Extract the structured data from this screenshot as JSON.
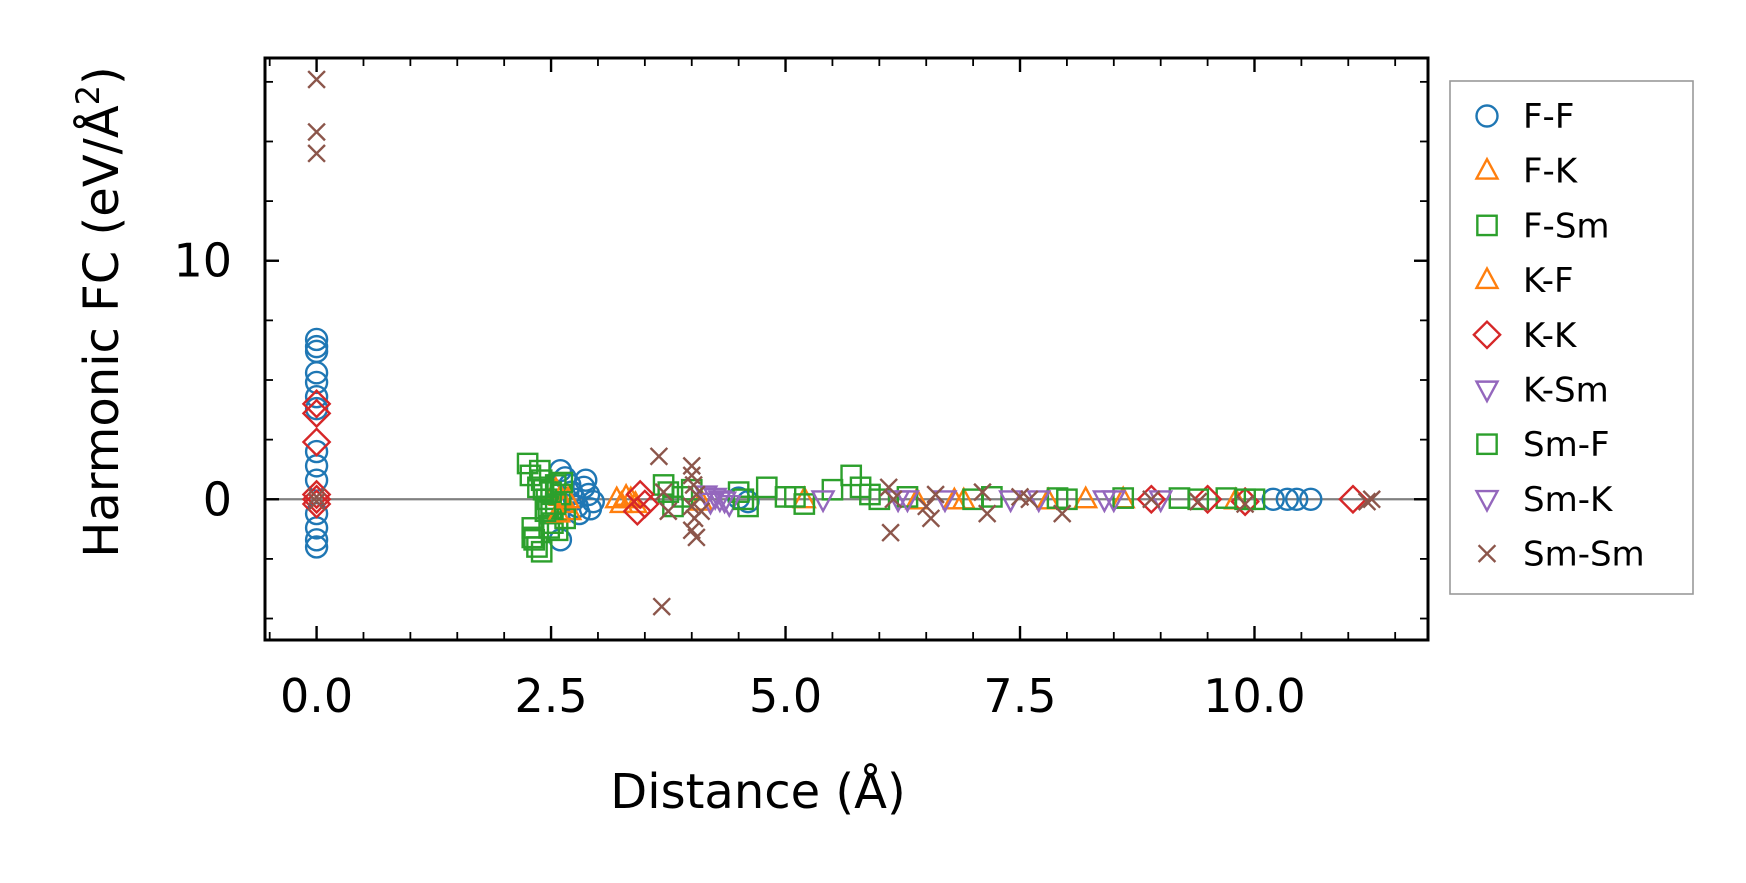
{
  "chart_data": {
    "type": "scatter",
    "xlabel": "Distance (Å)",
    "ylabel_main": "Harmonic FC (eV/Å",
    "ylabel_sup": "2",
    "ylabel_close": ")",
    "xlim": [
      -0.55,
      11.85
    ],
    "ylim": [
      -5.9,
      18.5
    ],
    "x_ticks": [
      0.0,
      2.5,
      5.0,
      7.5,
      10.0
    ],
    "x_tick_labels": [
      "0.0",
      "2.5",
      "5.0",
      "7.5",
      "10.0"
    ],
    "y_ticks": [
      0,
      10
    ],
    "y_tick_labels": [
      "0",
      "10"
    ],
    "zero_line": true,
    "grid": false,
    "legend_position": "right-outside",
    "series": [
      {
        "name": "F-F",
        "marker": "circle",
        "color": "#1f77b4",
        "points": [
          [
            0,
            6.7
          ],
          [
            0,
            6.4
          ],
          [
            0,
            6.2
          ],
          [
            0,
            5.3
          ],
          [
            0,
            4.9
          ],
          [
            0,
            4.3
          ],
          [
            0,
            3.8
          ],
          [
            0,
            2.0
          ],
          [
            0,
            1.4
          ],
          [
            0,
            0.8
          ],
          [
            0,
            -0.6
          ],
          [
            0,
            -1.2
          ],
          [
            0,
            -1.7
          ],
          [
            0,
            -2.0
          ],
          [
            2.6,
            1.2
          ],
          [
            2.65,
            0.9
          ],
          [
            2.7,
            0.6
          ],
          [
            2.72,
            0.3
          ],
          [
            2.75,
            0.0
          ],
          [
            2.78,
            -0.3
          ],
          [
            2.8,
            -0.6
          ],
          [
            2.6,
            -1.7
          ],
          [
            2.85,
            0.5
          ],
          [
            2.9,
            0.2
          ],
          [
            2.95,
            -0.1
          ],
          [
            2.87,
            0.8
          ],
          [
            2.92,
            -0.4
          ],
          [
            4.5,
            0.05
          ],
          [
            4.6,
            -0.1
          ],
          [
            10.2,
            0.0
          ],
          [
            10.35,
            0.0
          ],
          [
            10.45,
            0.0
          ],
          [
            10.6,
            0.0
          ]
        ]
      },
      {
        "name": "F-K",
        "marker": "triangle-up",
        "color": "#ff7f0e",
        "points": [
          [
            2.55,
            0.4
          ],
          [
            2.6,
            0.1
          ],
          [
            2.62,
            -0.2
          ],
          [
            2.7,
            -0.5
          ],
          [
            3.25,
            -0.2
          ],
          [
            3.3,
            0.1
          ],
          [
            3.35,
            0.0
          ],
          [
            4.1,
            -0.1
          ],
          [
            5.2,
            0.0
          ],
          [
            6.4,
            -0.05
          ],
          [
            6.9,
            -0.05
          ],
          [
            7.8,
            -0.05
          ],
          [
            8.6,
            0.0
          ],
          [
            9.8,
            -0.05
          ]
        ]
      },
      {
        "name": "F-Sm",
        "marker": "square",
        "color": "#2ca02c",
        "points": [
          [
            2.25,
            1.5
          ],
          [
            2.3,
            -1.2
          ],
          [
            2.32,
            -1.7
          ],
          [
            2.35,
            -2.0
          ],
          [
            2.38,
            1.2
          ],
          [
            2.4,
            0.8
          ],
          [
            2.42,
            0.4
          ],
          [
            2.45,
            0.0
          ],
          [
            2.47,
            -0.3
          ],
          [
            2.5,
            -0.6
          ],
          [
            2.52,
            -1.0
          ],
          [
            2.55,
            0.6
          ],
          [
            2.57,
            -1.3
          ],
          [
            2.6,
            0.2
          ],
          [
            2.65,
            -0.8
          ],
          [
            2.4,
            -2.2
          ],
          [
            2.3,
            -1.6
          ],
          [
            2.48,
            -1.2
          ],
          [
            3.7,
            0.6
          ],
          [
            3.75,
            0.3
          ],
          [
            3.8,
            -0.3
          ],
          [
            4.0,
            0.4
          ],
          [
            4.5,
            0.3
          ],
          [
            4.6,
            -0.3
          ],
          [
            4.8,
            0.5
          ],
          [
            5.0,
            0.1
          ],
          [
            5.2,
            -0.2
          ],
          [
            5.5,
            0.4
          ],
          [
            5.8,
            0.5
          ],
          [
            5.9,
            0.2
          ],
          [
            6.3,
            0.1
          ],
          [
            7.2,
            0.1
          ],
          [
            7.9,
            0.05
          ],
          [
            8.6,
            0.05
          ],
          [
            9.2,
            0.05
          ],
          [
            9.7,
            0.05
          ],
          [
            10.0,
            0.0
          ]
        ]
      },
      {
        "name": "K-F",
        "marker": "triangle-up",
        "color": "#ff7f0e",
        "points": [
          [
            2.58,
            -0.6
          ],
          [
            2.68,
            0.0
          ],
          [
            3.2,
            0.0
          ],
          [
            3.4,
            -0.2
          ],
          [
            6.8,
            -0.05
          ],
          [
            8.2,
            0.0
          ]
        ]
      },
      {
        "name": "K-K",
        "marker": "diamond",
        "color": "#d62728",
        "points": [
          [
            0,
            4.0
          ],
          [
            0,
            3.6
          ],
          [
            0,
            2.4
          ],
          [
            0,
            0.2
          ],
          [
            0,
            0.0
          ],
          [
            0,
            -0.2
          ],
          [
            3.45,
            0.2
          ],
          [
            3.42,
            -0.5
          ],
          [
            3.5,
            -0.2
          ],
          [
            8.9,
            0.0
          ],
          [
            9.5,
            0.0
          ],
          [
            9.9,
            -0.1
          ],
          [
            11.05,
            0.0
          ]
        ]
      },
      {
        "name": "K-Sm",
        "marker": "triangle-down",
        "color": "#9467bd",
        "points": [
          [
            4.15,
            0.2
          ],
          [
            4.2,
            -0.1
          ],
          [
            4.3,
            0.0
          ],
          [
            4.4,
            -0.2
          ],
          [
            5.4,
            0.0
          ],
          [
            6.3,
            0.0
          ],
          [
            6.7,
            0.0
          ],
          [
            7.7,
            0.0
          ],
          [
            8.4,
            0.0
          ],
          [
            9.0,
            0.0
          ]
        ]
      },
      {
        "name": "Sm-F",
        "marker": "square",
        "color": "#2ca02c",
        "points": [
          [
            2.28,
            1.0
          ],
          [
            2.36,
            0.5
          ],
          [
            2.44,
            -0.5
          ],
          [
            2.5,
            0.3
          ],
          [
            2.55,
            -0.2
          ],
          [
            2.62,
            0.7
          ],
          [
            3.9,
            0.1
          ],
          [
            4.55,
            0.0
          ],
          [
            5.1,
            0.1
          ],
          [
            5.7,
            1.0
          ],
          [
            6.0,
            0.0
          ],
          [
            7.0,
            0.0
          ],
          [
            8.0,
            0.0
          ],
          [
            9.4,
            0.0
          ],
          [
            9.9,
            0.0
          ]
        ]
      },
      {
        "name": "Sm-K",
        "marker": "triangle-down",
        "color": "#9467bd",
        "points": [
          [
            4.25,
            0.1
          ],
          [
            4.35,
            -0.05
          ],
          [
            6.2,
            0.0
          ],
          [
            7.4,
            0.0
          ],
          [
            8.5,
            0.0
          ]
        ]
      },
      {
        "name": "Sm-Sm",
        "marker": "x",
        "color": "#8c564b",
        "points": [
          [
            0,
            17.6
          ],
          [
            0,
            15.4
          ],
          [
            0,
            14.5
          ],
          [
            0,
            0.1
          ],
          [
            0,
            -0.1
          ],
          [
            3.65,
            1.8
          ],
          [
            3.7,
            0.3
          ],
          [
            3.75,
            -0.5
          ],
          [
            3.68,
            -4.5
          ],
          [
            4.0,
            1.4
          ],
          [
            4.0,
            1.0
          ],
          [
            4.02,
            0.6
          ],
          [
            4.05,
            0.2
          ],
          [
            4.0,
            -0.3
          ],
          [
            4.03,
            -0.8
          ],
          [
            4.0,
            -1.3
          ],
          [
            4.05,
            -1.6
          ],
          [
            4.1,
            -0.5
          ],
          [
            6.1,
            0.5
          ],
          [
            6.15,
            0.0
          ],
          [
            6.12,
            -1.4
          ],
          [
            6.5,
            -0.3
          ],
          [
            6.55,
            -0.8
          ],
          [
            6.6,
            0.2
          ],
          [
            7.1,
            0.3
          ],
          [
            7.15,
            -0.6
          ],
          [
            7.5,
            0.1
          ],
          [
            7.95,
            -0.6
          ],
          [
            7.6,
            0.0
          ],
          [
            8.9,
            0.0
          ],
          [
            9.4,
            -0.1
          ],
          [
            9.9,
            -0.2
          ],
          [
            11.2,
            -0.1
          ],
          [
            11.25,
            0.0
          ]
        ]
      }
    ]
  }
}
